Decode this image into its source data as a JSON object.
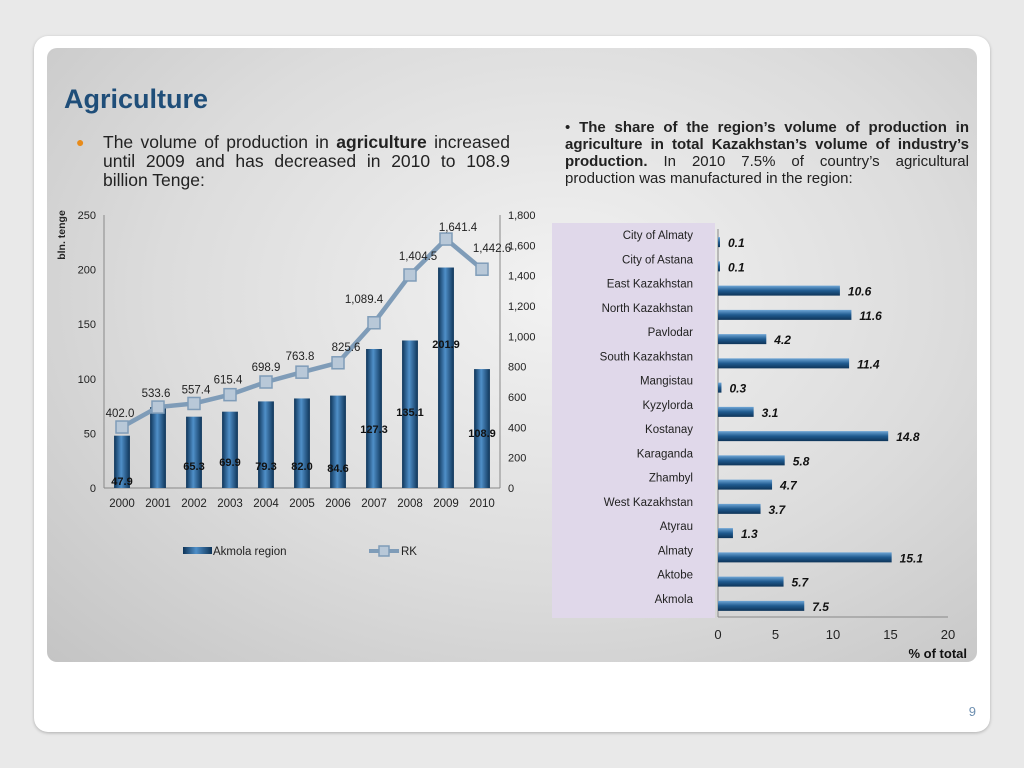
{
  "slide": {
    "title": "Agriculture",
    "left_text_lead": "The volume of production in",
    "left_text_bold": "agriculture",
    "left_text_rest": "increased until 2009 and has decreased in 2010 to 108.9 billion Tenge:",
    "right_bullet": "•",
    "right_bold": "The share of the region’s volume of production in agriculture in total Kazakhstan’s volume of industry’s production.",
    "right_rest": "In 2010 7.5% of country’s agricultural production was manufactured in the region:",
    "page_number": "9"
  },
  "chart_data": [
    {
      "type": "bar",
      "ylabel": "bln. tenge",
      "ylim": [
        0,
        250
      ],
      "y_ticks": [
        "0",
        "50",
        "100",
        "150",
        "200",
        "250"
      ],
      "y2lim": [
        0,
        1800
      ],
      "y2_ticks": [
        "0",
        "200",
        "400",
        "600",
        "800",
        "1,000",
        "1,200",
        "1,400",
        "1,600",
        "1,800"
      ],
      "categories": [
        "2000",
        "2001",
        "2002",
        "2003",
        "2004",
        "2005",
        "2006",
        "2007",
        "2008",
        "2009",
        "2010"
      ],
      "series": [
        {
          "name": "Akmola region",
          "kind": "bar",
          "axis": "left",
          "values": [
            47.9,
            74.0,
            65.3,
            69.9,
            79.3,
            82.0,
            84.6,
            127.3,
            135.1,
            201.9,
            108.9
          ],
          "labels": [
            "47.9",
            "",
            "65.3",
            "69.9",
            "79.3",
            "82.0",
            "84.6",
            "127.3",
            "135.1",
            "201.9",
            "108.9"
          ],
          "color": "#1f5a8f"
        },
        {
          "name": "RK",
          "kind": "line",
          "axis": "right",
          "values": [
            402.0,
            533.6,
            557.4,
            615.4,
            698.9,
            763.8,
            825.6,
            1089.4,
            1404.5,
            1641.4,
            1442.6
          ],
          "labels": [
            "402.0",
            "533.6",
            "557.4",
            "615.4",
            "698.9",
            "763.8",
            "825.6",
            "1,089.4",
            "1,404.5",
            "1,641.4",
            "1,442.6"
          ],
          "color": "#7f9cb8"
        }
      ],
      "legend": "bottom"
    },
    {
      "type": "bar",
      "orientation": "horizontal",
      "xlabel": "% of total",
      "xlim": [
        0,
        20
      ],
      "x_ticks": [
        "0",
        "5",
        "10",
        "15",
        "20"
      ],
      "categories": [
        "City of Almaty",
        "City of Astana",
        "East Kazakhstan",
        "North Kazakhstan",
        "Pavlodar",
        "South Kazakhstan",
        "Mangistau",
        "Kyzylorda",
        "Kostanay",
        "Karaganda",
        "Zhambyl",
        "West Kazakhstan",
        "Atyrau",
        "Almaty",
        "Aktobe",
        "Akmola"
      ],
      "values": [
        0.1,
        0.1,
        10.6,
        11.6,
        4.2,
        11.4,
        0.3,
        3.1,
        14.8,
        5.8,
        4.7,
        3.7,
        1.3,
        15.1,
        5.7,
        7.5
      ],
      "labels": [
        "0.1",
        "0.1",
        "10.6",
        "11.6",
        "4.2",
        "11.4",
        "0.3",
        "3.1",
        "14.8",
        "5.8",
        "4.7",
        "3.7",
        "1.3",
        "15.1",
        "5.7",
        "7.5"
      ],
      "color": "#1f5a8f",
      "category_background": "#e0d8ea"
    }
  ]
}
